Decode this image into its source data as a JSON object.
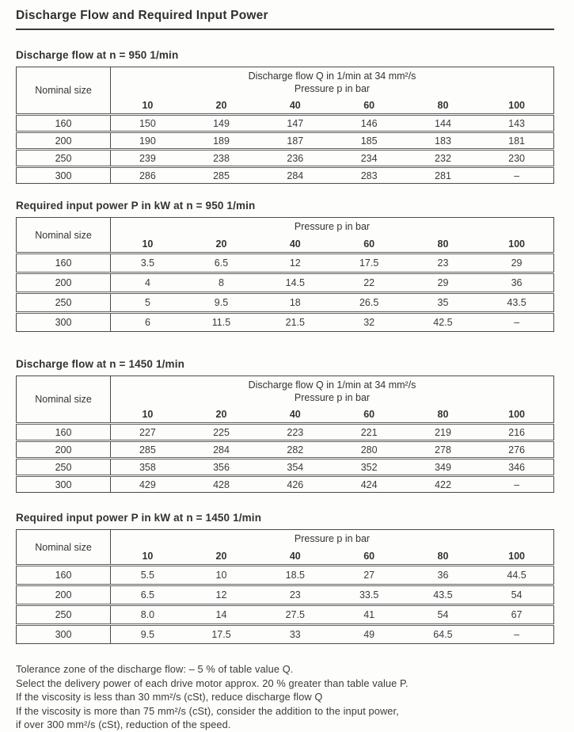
{
  "page": {
    "title": "Discharge Flow and Required Input Power"
  },
  "tables": [
    {
      "heading": "Discharge flow at n = 950 1/min",
      "corner_label": "Nominal size",
      "group_header": [
        "Discharge flow Q in 1/min at 34 mm²/s",
        "Pressure p in bar"
      ],
      "pressure_columns": [
        "10",
        "20",
        "40",
        "60",
        "80",
        "100"
      ],
      "rows": [
        {
          "size": "160",
          "values": [
            "150",
            "149",
            "147",
            "146",
            "144",
            "143"
          ]
        },
        {
          "size": "200",
          "values": [
            "190",
            "189",
            "187",
            "185",
            "183",
            "181"
          ]
        },
        {
          "size": "250",
          "values": [
            "239",
            "238",
            "236",
            "234",
            "232",
            "230"
          ]
        },
        {
          "size": "300",
          "values": [
            "286",
            "285",
            "284",
            "283",
            "281",
            "–"
          ]
        }
      ]
    },
    {
      "heading": "Required input power P in kW at n = 950 1/min",
      "corner_label": "Nominal size",
      "group_header": [
        "Pressure p in bar"
      ],
      "pressure_columns": [
        "10",
        "20",
        "40",
        "60",
        "80",
        "100"
      ],
      "rows": [
        {
          "size": "160",
          "values": [
            "3.5",
            "6.5",
            "12",
            "17.5",
            "23",
            "29"
          ]
        },
        {
          "size": "200",
          "values": [
            "4",
            "8",
            "14.5",
            "22",
            "29",
            "36"
          ]
        },
        {
          "size": "250",
          "values": [
            "5",
            "9.5",
            "18",
            "26.5",
            "35",
            "43.5"
          ]
        },
        {
          "size": "300",
          "values": [
            "6",
            "11.5",
            "21.5",
            "32",
            "42.5",
            "–"
          ]
        }
      ]
    },
    {
      "heading": "Discharge flow at n = 1450 1/min",
      "corner_label": "Nominal size",
      "group_header": [
        "Discharge flow Q in 1/min at 34 mm²/s",
        "Pressure p in bar"
      ],
      "pressure_columns": [
        "10",
        "20",
        "40",
        "60",
        "80",
        "100"
      ],
      "rows": [
        {
          "size": "160",
          "values": [
            "227",
            "225",
            "223",
            "221",
            "219",
            "216"
          ]
        },
        {
          "size": "200",
          "values": [
            "285",
            "284",
            "282",
            "280",
            "278",
            "276"
          ]
        },
        {
          "size": "250",
          "values": [
            "358",
            "356",
            "354",
            "352",
            "349",
            "346"
          ]
        },
        {
          "size": "300",
          "values": [
            "429",
            "428",
            "426",
            "424",
            "422",
            "–"
          ]
        }
      ]
    },
    {
      "heading": "Required input power P in kW at n = 1450 1/min",
      "corner_label": "Nominal size",
      "group_header": [
        "Pressure p in bar"
      ],
      "pressure_columns": [
        "10",
        "20",
        "40",
        "60",
        "80",
        "100"
      ],
      "rows": [
        {
          "size": "160",
          "values": [
            "5.5",
            "10",
            "18.5",
            "27",
            "36",
            "44.5"
          ]
        },
        {
          "size": "200",
          "values": [
            "6.5",
            "12",
            "23",
            "33.5",
            "43.5",
            "54"
          ]
        },
        {
          "size": "250",
          "values": [
            "8.0",
            "14",
            "27.5",
            "41",
            "54",
            "67"
          ]
        },
        {
          "size": "300",
          "values": [
            "9.5",
            "17.5",
            "33",
            "49",
            "64.5",
            "–"
          ]
        }
      ]
    }
  ],
  "notes": [
    "Tolerance zone of the discharge flow: – 5 % of table value Q.",
    "Select the delivery power of each drive motor approx. 20 % greater than table value P.",
    "If the viscosity is less than 30 mm²/s (cSt), reduce discharge flow Q",
    "If the viscosity is more than 75 mm²/s (cSt), consider the addition to the input power,",
    "if over 300 mm²/s (cSt), reduction of the speed."
  ]
}
